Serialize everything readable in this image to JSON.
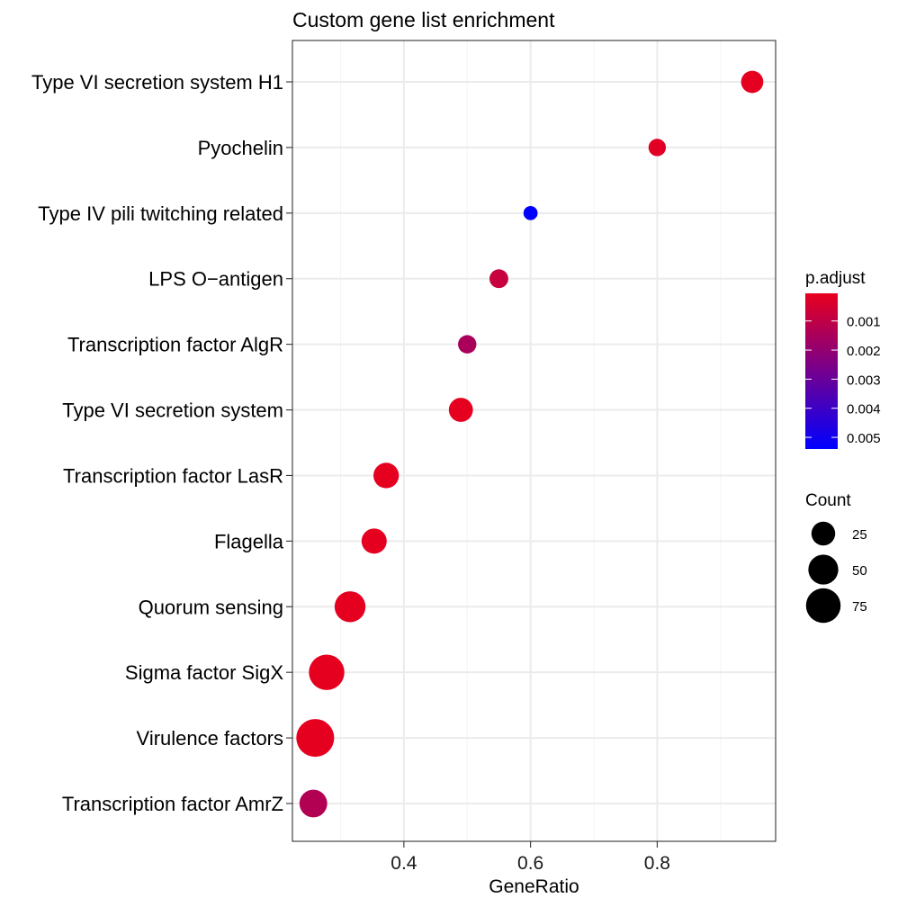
{
  "chart_data": {
    "type": "scatter",
    "title": "Custom gene list enrichment",
    "xlabel": "GeneRatio",
    "ylabel": "",
    "xlim": [
      0.224,
      0.987
    ],
    "x_ticks": [
      0.4,
      0.6,
      0.8
    ],
    "x_tick_labels": [
      "0.4",
      "0.6",
      "0.8"
    ],
    "x_minor_ticks": [
      0.3,
      0.5,
      0.7,
      0.9
    ],
    "grid": true,
    "categories": [
      "Type VI secretion system H1",
      "Pyochelin",
      "Type IV pili twitching related",
      "LPS O−antigen",
      "Transcription factor AlgR",
      "Type VI secretion system",
      "Transcription factor LasR",
      "Flagella",
      "Quorum sensing",
      "Sigma factor SigX",
      "Virulence factors",
      "Transcription factor AmrZ"
    ],
    "points": [
      {
        "term": "Type VI secretion system H1",
        "gene_ratio": 0.95,
        "count": 20,
        "p_adjust": 0.0001
      },
      {
        "term": "Pyochelin",
        "gene_ratio": 0.8,
        "count": 8,
        "p_adjust": 0.0002
      },
      {
        "term": "Type IV pili twitching related",
        "gene_ratio": 0.6,
        "count": 3,
        "p_adjust": 0.0054
      },
      {
        "term": "LPS O−antigen",
        "gene_ratio": 0.55,
        "count": 11,
        "p_adjust": 0.0008
      },
      {
        "term": "Transcription factor AlgR",
        "gene_ratio": 0.5,
        "count": 10,
        "p_adjust": 0.0015
      },
      {
        "term": "Type VI secretion system",
        "gene_ratio": 0.49,
        "count": 26,
        "p_adjust": 0.0001
      },
      {
        "term": "Transcription factor LasR",
        "gene_ratio": 0.372,
        "count": 31,
        "p_adjust": 0.0001
      },
      {
        "term": "Flagella",
        "gene_ratio": 0.353,
        "count": 30,
        "p_adjust": 0.0001
      },
      {
        "term": "Quorum sensing",
        "gene_ratio": 0.315,
        "count": 55,
        "p_adjust": 0.0001
      },
      {
        "term": "Sigma factor SigX",
        "gene_ratio": 0.278,
        "count": 80,
        "p_adjust": 0.0001
      },
      {
        "term": "Virulence factors",
        "gene_ratio": 0.26,
        "count": 95,
        "p_adjust": 0.0001
      },
      {
        "term": "Transcription factor AmrZ",
        "gene_ratio": 0.257,
        "count": 40,
        "p_adjust": 0.0013
      }
    ],
    "legend_color": {
      "title": "p.adjust",
      "ticks": [
        0.001,
        0.002,
        0.003,
        0.004,
        0.005
      ],
      "tick_labels": [
        "0.001",
        "0.002",
        "0.003",
        "0.004",
        "0.005"
      ],
      "range": [
        5e-05,
        0.0054
      ],
      "color_low": "#e8001e",
      "color_high": "#0000ff"
    },
    "legend_size": {
      "title": "Count",
      "values": [
        25,
        50,
        75
      ],
      "labels": [
        "25",
        "50",
        "75"
      ]
    },
    "colors": {
      "panel_border": "#333333",
      "grid_major": "#ebebeb",
      "grid_minor": "#f4f4f4",
      "text": "#000000",
      "tick_text": "#1a1a1a"
    }
  }
}
